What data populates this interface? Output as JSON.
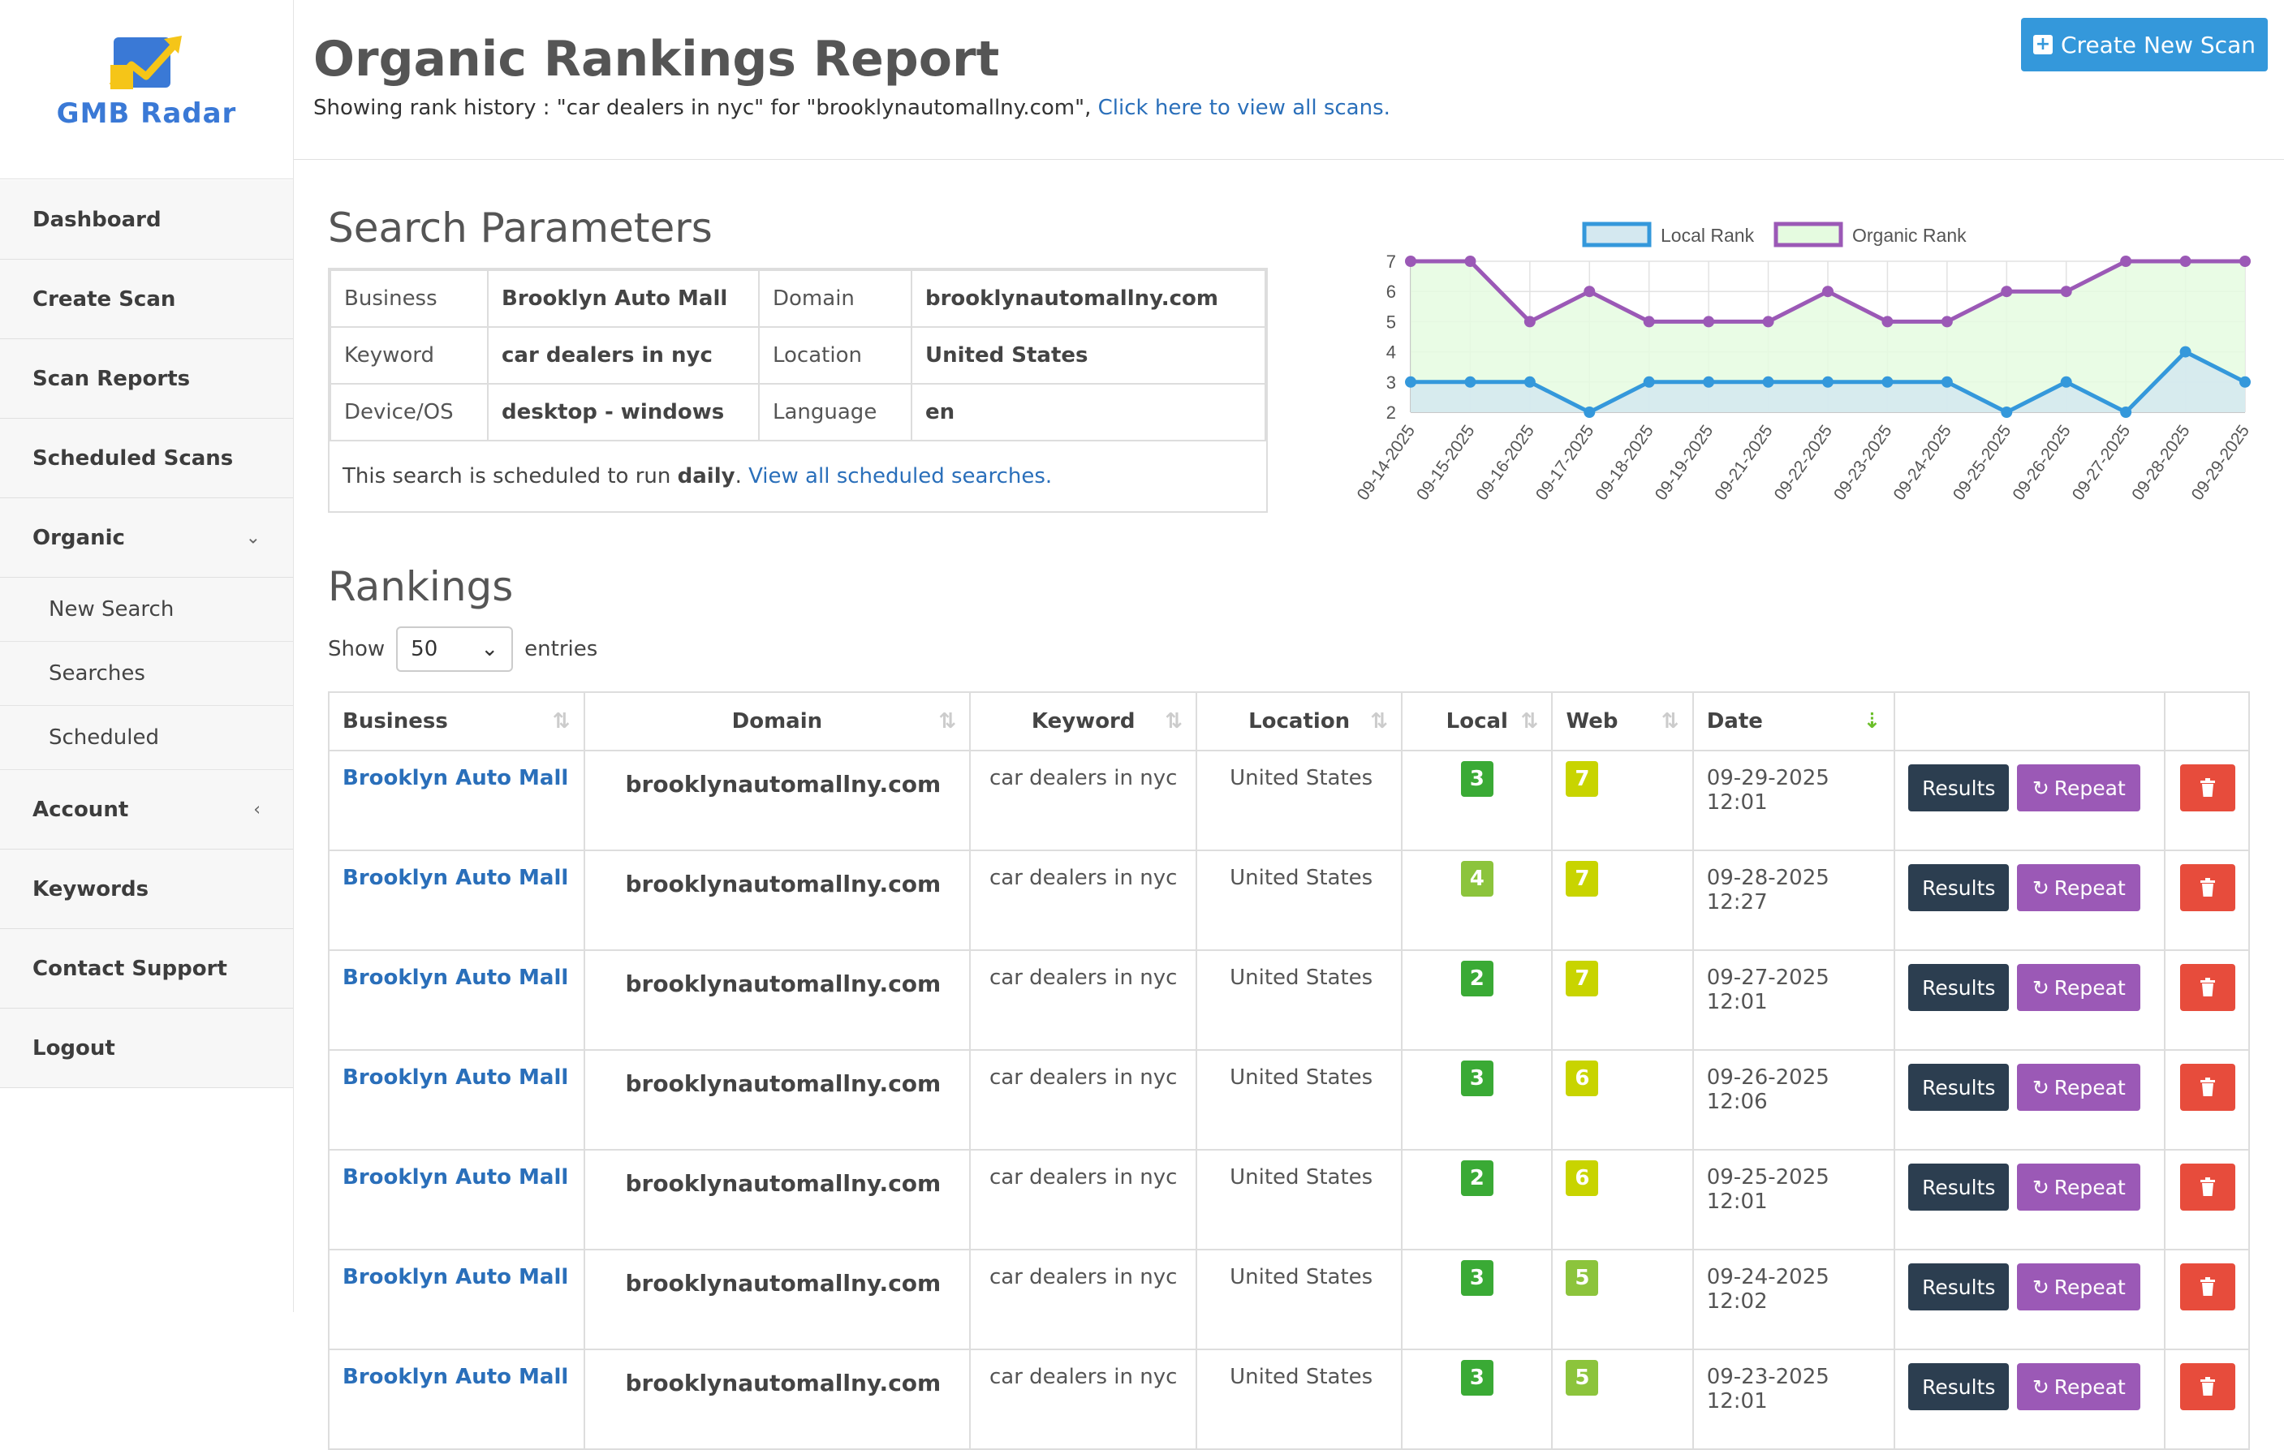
{
  "sidebar": {
    "logo_text": "GMB Radar",
    "items": [
      {
        "label": "Dashboard"
      },
      {
        "label": "Create Scan"
      },
      {
        "label": "Scan Reports"
      },
      {
        "label": "Scheduled Scans"
      },
      {
        "label": "Organic",
        "chevron": "⌄"
      },
      {
        "label": "New Search"
      },
      {
        "label": "Searches"
      },
      {
        "label": "Scheduled"
      },
      {
        "label": "Account",
        "chevron": "‹"
      },
      {
        "label": "Keywords"
      },
      {
        "label": "Contact Support"
      },
      {
        "label": "Logout"
      }
    ]
  },
  "header": {
    "title": "Organic Rankings Report",
    "subtitle": "Showing rank history : \"car dealers in nyc\" for \"brooklynautomallny.com\",",
    "subtitle_link": "Click here to view all scans.",
    "create_button": "Create New Scan"
  },
  "params": {
    "title": "Search Parameters",
    "rows": [
      {
        "k1": "Business",
        "v1": "Brooklyn Auto Mall",
        "k2": "Domain",
        "v2": "brooklynautomallny.com"
      },
      {
        "k1": "Keyword",
        "v1": "car dealers in nyc",
        "k2": "Location",
        "v2": "United States"
      },
      {
        "k1": "Device/OS",
        "v1": "desktop - windows",
        "k2": "Language",
        "v2": "en"
      }
    ],
    "schedule_prefix": "This search is scheduled to run ",
    "schedule_freq": "daily",
    "schedule_suffix": ". ",
    "schedule_link": "View all scheduled searches."
  },
  "chart_data": {
    "type": "line",
    "x": [
      "09-14-2025",
      "09-15-2025",
      "09-16-2025",
      "09-17-2025",
      "09-18-2025",
      "09-19-2025",
      "09-21-2025",
      "09-22-2025",
      "09-23-2025",
      "09-24-2025",
      "09-25-2025",
      "09-26-2025",
      "09-27-2025",
      "09-28-2025",
      "09-29-2025"
    ],
    "series": [
      {
        "name": "Local Rank",
        "values": [
          3,
          3,
          3,
          2,
          3,
          3,
          3,
          3,
          3,
          3,
          2,
          3,
          2,
          4,
          3
        ],
        "color": "#3498db",
        "fill": "#d4e8f0"
      },
      {
        "name": "Organic Rank",
        "values": [
          7,
          7,
          5,
          6,
          5,
          5,
          5,
          6,
          5,
          5,
          6,
          6,
          7,
          7,
          7
        ],
        "color": "#9b59b6",
        "fill": "#e5fbe0"
      }
    ],
    "yticks": [
      2,
      3,
      4,
      5,
      6,
      7
    ],
    "ylim": [
      2,
      7
    ],
    "legend": "top",
    "grid": true
  },
  "rankings": {
    "title": "Rankings",
    "show_label": "Show",
    "entries_value": "50",
    "entries_label": "entries",
    "columns": [
      "Business",
      "Domain",
      "Keyword",
      "Location",
      "Local",
      "Web",
      "Date"
    ],
    "results_label": "Results",
    "repeat_label": "Repeat",
    "rows": [
      {
        "business": "Brooklyn Auto Mall",
        "domain": "brooklynautomallny.com",
        "keyword": "car dealers in nyc",
        "location": "United States",
        "local": "3",
        "web": "7",
        "date": "09-29-2025 12:01",
        "local_color": "#3aaa35",
        "web_color": "#c8d400"
      },
      {
        "business": "Brooklyn Auto Mall",
        "domain": "brooklynautomallny.com",
        "keyword": "car dealers in nyc",
        "location": "United States",
        "local": "4",
        "web": "7",
        "date": "09-28-2025 12:27",
        "local_color": "#8cc43c",
        "web_color": "#c8d400"
      },
      {
        "business": "Brooklyn Auto Mall",
        "domain": "brooklynautomallny.com",
        "keyword": "car dealers in nyc",
        "location": "United States",
        "local": "2",
        "web": "7",
        "date": "09-27-2025 12:01",
        "local_color": "#3aaa35",
        "web_color": "#c8d400"
      },
      {
        "business": "Brooklyn Auto Mall",
        "domain": "brooklynautomallny.com",
        "keyword": "car dealers in nyc",
        "location": "United States",
        "local": "3",
        "web": "6",
        "date": "09-26-2025 12:06",
        "local_color": "#3aaa35",
        "web_color": "#c8d400"
      },
      {
        "business": "Brooklyn Auto Mall",
        "domain": "brooklynautomallny.com",
        "keyword": "car dealers in nyc",
        "location": "United States",
        "local": "2",
        "web": "6",
        "date": "09-25-2025 12:01",
        "local_color": "#3aaa35",
        "web_color": "#c8d400"
      },
      {
        "business": "Brooklyn Auto Mall",
        "domain": "brooklynautomallny.com",
        "keyword": "car dealers in nyc",
        "location": "United States",
        "local": "3",
        "web": "5",
        "date": "09-24-2025 12:02",
        "local_color": "#3aaa35",
        "web_color": "#8cc43c"
      },
      {
        "business": "Brooklyn Auto Mall",
        "domain": "brooklynautomallny.com",
        "keyword": "car dealers in nyc",
        "location": "United States",
        "local": "3",
        "web": "5",
        "date": "09-23-2025 12:01",
        "local_color": "#3aaa35",
        "web_color": "#8cc43c"
      }
    ]
  }
}
